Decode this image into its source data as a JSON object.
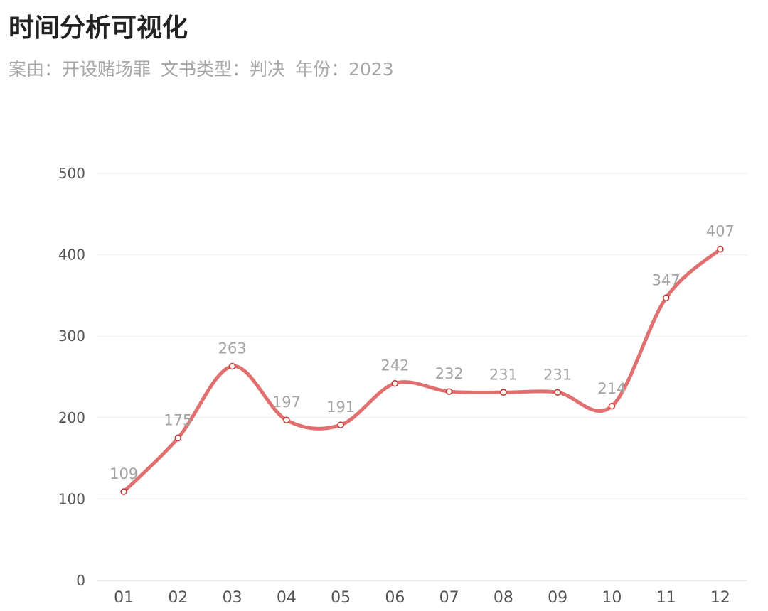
{
  "header": {
    "title": "时间分析可视化",
    "filters": [
      {
        "label": "案由：",
        "value": "开设赌场罪"
      },
      {
        "label": "文书类型：",
        "value": "判决"
      },
      {
        "label": "年份：",
        "value": "2023"
      }
    ]
  },
  "colors": {
    "line": "#e07070",
    "point_stroke": "#c23531",
    "grid": "#ececec",
    "axis": "#cccccc"
  },
  "chart_data": {
    "type": "line",
    "smooth": true,
    "categories": [
      "01",
      "02",
      "03",
      "04",
      "05",
      "06",
      "07",
      "08",
      "09",
      "10",
      "11",
      "12"
    ],
    "series": [
      {
        "values": [
          109,
          175,
          263,
          197,
          191,
          242,
          232,
          231,
          231,
          214,
          347,
          407
        ]
      }
    ],
    "yticks": [
      0,
      100,
      200,
      300,
      400,
      500
    ],
    "ylim": [
      0,
      500
    ],
    "grid": true,
    "data_labels": true
  }
}
